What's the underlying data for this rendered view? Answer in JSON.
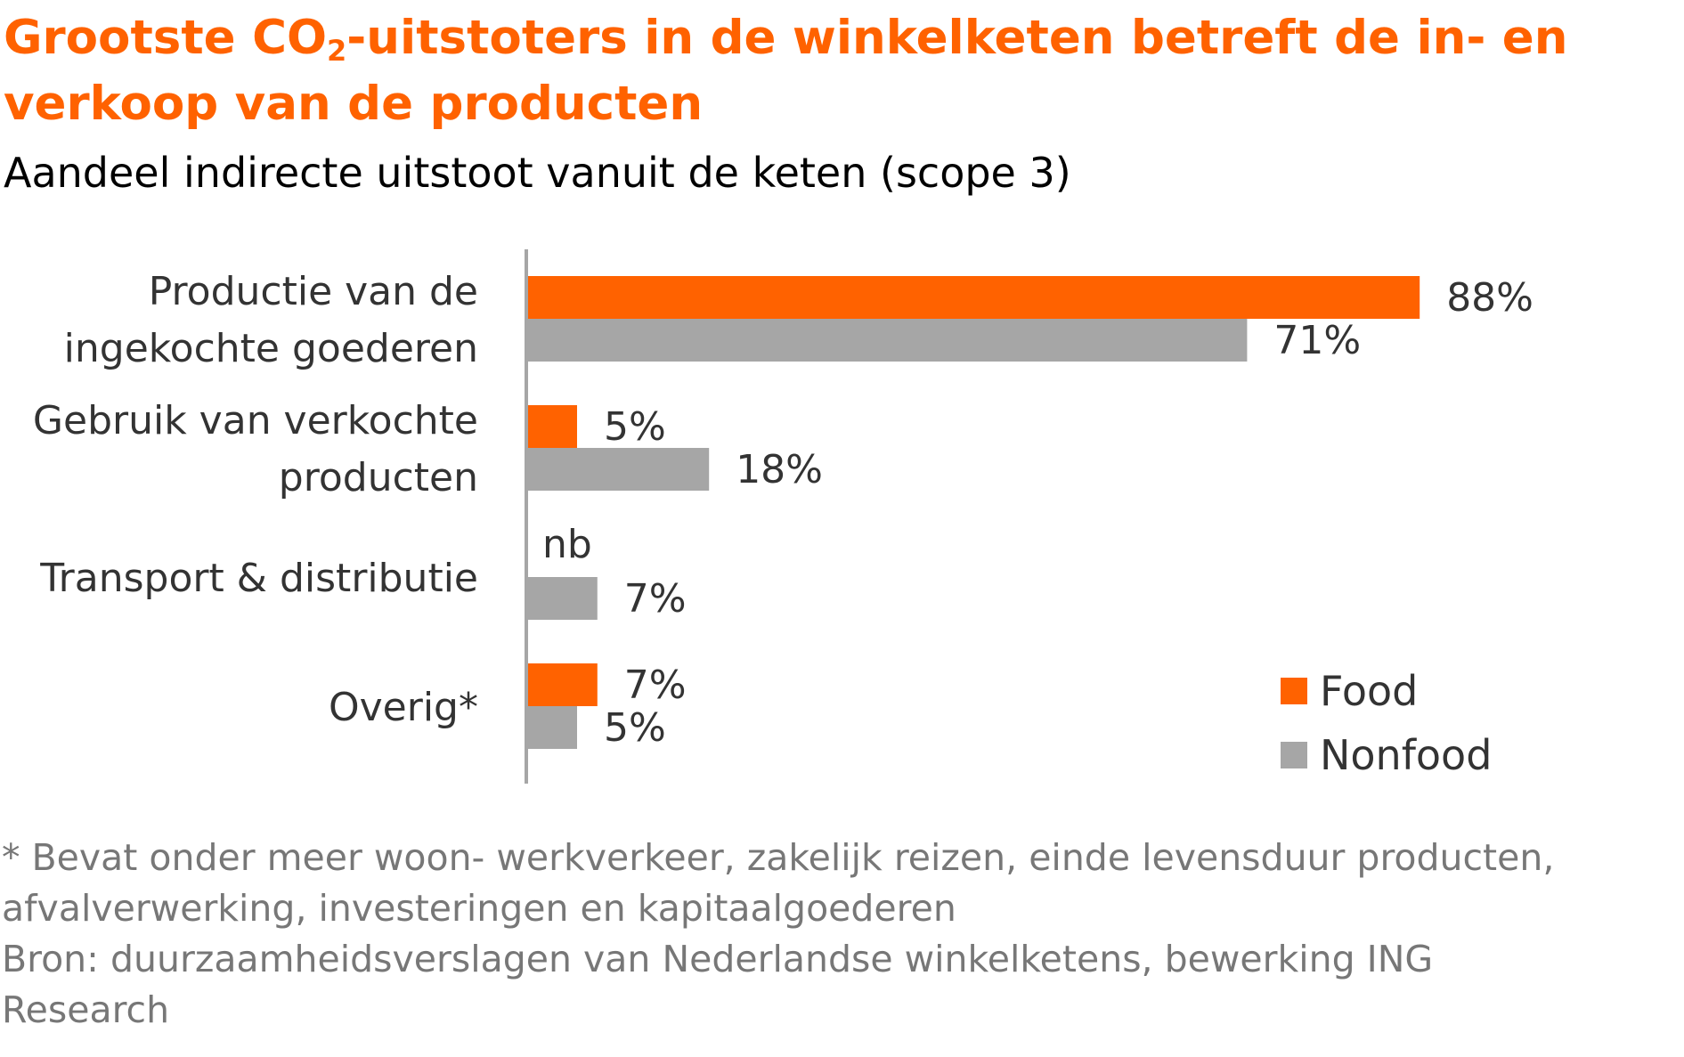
{
  "title": {
    "before": "Grootste CO",
    "sub": "2",
    "after": "-uitstoters in de winkelketen betreft de in- en verkoop van de producten"
  },
  "subtitle": "Aandeel indirecte uitstoot vanuit de keten (scope 3)",
  "colors": {
    "food": "#ff6200",
    "nonfood": "#a6a6a6",
    "axis": "#a6a6a6"
  },
  "chart_data": {
    "type": "bar",
    "orientation": "horizontal",
    "categories": [
      [
        "Productie van de",
        "ingekochte goederen"
      ],
      [
        "Gebruik van verkochte",
        "producten"
      ],
      [
        "Transport & distributie"
      ],
      [
        "Overig*"
      ]
    ],
    "series": [
      {
        "name": "Food",
        "values": [
          88,
          5,
          null,
          7
        ],
        "labels": [
          "88%",
          "5%",
          "nb",
          "7%"
        ]
      },
      {
        "name": "Nonfood",
        "values": [
          71,
          18,
          7,
          5
        ],
        "labels": [
          "71%",
          "18%",
          "7%",
          "5%"
        ]
      }
    ],
    "unit": "%",
    "legend_position": "bottom-right",
    "grid": false
  },
  "footnote": [
    "* Bevat onder meer woon- werkverkeer, zakelijk reizen, einde levensduur producten,",
    "afvalverwerking, investeringen en kapitaalgoederen",
    "Bron: duurzaamheidsverslagen van Nederlandse winkelketens, bewerking ING",
    "Research"
  ]
}
